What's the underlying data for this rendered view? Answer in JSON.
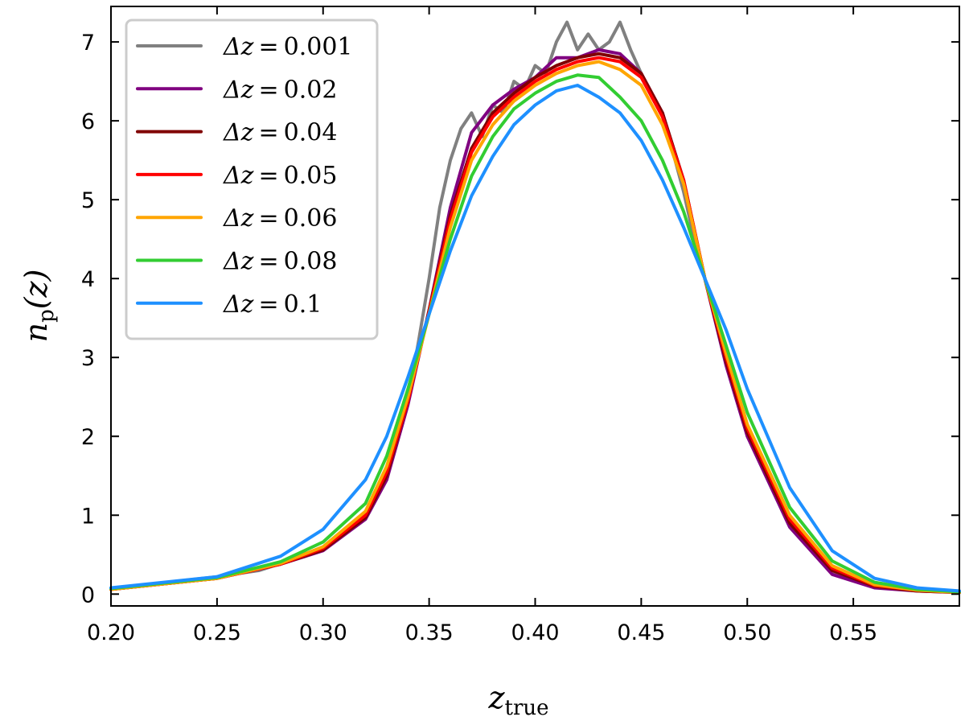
{
  "chart_data": {
    "type": "line",
    "title": "",
    "xlabel": "z",
    "xlabel_sub": "true",
    "ylabel": "n",
    "ylabel_sub": "p",
    "ylabel_arg": "(z)",
    "xlim": [
      0.2,
      0.6
    ],
    "ylim": [
      -0.15,
      7.45
    ],
    "xticks": [
      0.2,
      0.25,
      0.3,
      0.35,
      0.4,
      0.45,
      0.5,
      0.55
    ],
    "xtick_labels": [
      "0.20",
      "0.25",
      "0.30",
      "0.35",
      "0.40",
      "0.45",
      "0.50",
      "0.55"
    ],
    "yticks": [
      0,
      1,
      2,
      3,
      4,
      5,
      6,
      7
    ],
    "ytick_labels": [
      "0",
      "1",
      "2",
      "3",
      "4",
      "5",
      "6",
      "7"
    ],
    "grid": false,
    "legend_position": "top-left",
    "series": [
      {
        "name": "Δz = 0.001",
        "prefix": "Δz",
        "value": "0.001",
        "color": "#808080",
        "x": [
          0.2,
          0.25,
          0.27,
          0.3,
          0.32,
          0.33,
          0.34,
          0.345,
          0.35,
          0.355,
          0.36,
          0.365,
          0.37,
          0.375,
          0.38,
          0.385,
          0.39,
          0.395,
          0.4,
          0.405,
          0.41,
          0.415,
          0.42,
          0.425,
          0.43,
          0.435,
          0.44,
          0.445,
          0.45,
          0.455,
          0.46,
          0.465,
          0.47,
          0.475,
          0.48,
          0.49,
          0.5,
          0.52,
          0.54,
          0.56,
          0.58,
          0.6
        ],
        "y": [
          0.07,
          0.22,
          0.3,
          0.56,
          0.95,
          1.45,
          2.45,
          3.2,
          4.0,
          4.9,
          5.5,
          5.9,
          6.1,
          5.8,
          6.2,
          6.1,
          6.5,
          6.4,
          6.7,
          6.6,
          7.0,
          7.25,
          6.9,
          7.1,
          6.9,
          7.0,
          7.25,
          6.9,
          6.6,
          6.3,
          6.1,
          5.6,
          5.1,
          4.5,
          4.0,
          3.0,
          2.0,
          0.9,
          0.28,
          0.12,
          0.06,
          0.03
        ]
      },
      {
        "name": "Δz = 0.02",
        "prefix": "Δz",
        "value": "0.02",
        "color": "#800080",
        "x": [
          0.2,
          0.25,
          0.28,
          0.3,
          0.32,
          0.33,
          0.34,
          0.35,
          0.36,
          0.37,
          0.38,
          0.39,
          0.4,
          0.41,
          0.42,
          0.43,
          0.44,
          0.45,
          0.46,
          0.47,
          0.48,
          0.49,
          0.5,
          0.52,
          0.54,
          0.56,
          0.58,
          0.6
        ],
        "y": [
          0.06,
          0.2,
          0.38,
          0.55,
          0.95,
          1.45,
          2.4,
          3.6,
          4.9,
          5.85,
          6.2,
          6.4,
          6.55,
          6.8,
          6.8,
          6.9,
          6.85,
          6.6,
          6.1,
          5.2,
          4.0,
          2.9,
          2.0,
          0.85,
          0.25,
          0.08,
          0.04,
          0.02
        ]
      },
      {
        "name": "Δz = 0.04",
        "prefix": "Δz",
        "value": "0.04",
        "color": "#800000",
        "x": [
          0.2,
          0.25,
          0.28,
          0.3,
          0.32,
          0.33,
          0.34,
          0.35,
          0.36,
          0.37,
          0.38,
          0.39,
          0.4,
          0.41,
          0.42,
          0.43,
          0.44,
          0.45,
          0.46,
          0.47,
          0.48,
          0.49,
          0.5,
          0.52,
          0.54,
          0.56,
          0.58,
          0.6
        ],
        "y": [
          0.06,
          0.2,
          0.38,
          0.56,
          0.97,
          1.5,
          2.45,
          3.6,
          4.8,
          5.65,
          6.1,
          6.35,
          6.55,
          6.7,
          6.8,
          6.85,
          6.8,
          6.6,
          6.1,
          5.25,
          4.0,
          2.95,
          2.05,
          0.9,
          0.3,
          0.1,
          0.04,
          0.02
        ]
      },
      {
        "name": "Δz = 0.05",
        "prefix": "Δz",
        "value": "0.05",
        "color": "#ff0000",
        "x": [
          0.2,
          0.25,
          0.28,
          0.3,
          0.32,
          0.33,
          0.34,
          0.35,
          0.36,
          0.37,
          0.38,
          0.39,
          0.4,
          0.41,
          0.42,
          0.43,
          0.44,
          0.45,
          0.46,
          0.47,
          0.48,
          0.49,
          0.5,
          0.52,
          0.54,
          0.56,
          0.58,
          0.6
        ],
        "y": [
          0.06,
          0.2,
          0.38,
          0.58,
          1.0,
          1.55,
          2.45,
          3.58,
          4.75,
          5.6,
          6.05,
          6.3,
          6.5,
          6.65,
          6.75,
          6.8,
          6.75,
          6.55,
          6.05,
          5.25,
          4.0,
          3.0,
          2.1,
          0.95,
          0.33,
          0.11,
          0.05,
          0.02
        ]
      },
      {
        "name": "Δz = 0.06",
        "prefix": "Δz",
        "value": "0.06",
        "color": "#ffa500",
        "x": [
          0.2,
          0.25,
          0.28,
          0.3,
          0.32,
          0.33,
          0.34,
          0.35,
          0.36,
          0.37,
          0.38,
          0.39,
          0.4,
          0.41,
          0.42,
          0.43,
          0.44,
          0.45,
          0.46,
          0.47,
          0.48,
          0.49,
          0.5,
          0.52,
          0.54,
          0.56,
          0.58,
          0.6
        ],
        "y": [
          0.06,
          0.2,
          0.39,
          0.6,
          1.05,
          1.62,
          2.5,
          3.55,
          4.65,
          5.5,
          5.95,
          6.25,
          6.45,
          6.6,
          6.7,
          6.75,
          6.65,
          6.45,
          5.95,
          5.2,
          4.0,
          3.05,
          2.15,
          1.0,
          0.36,
          0.12,
          0.05,
          0.02
        ]
      },
      {
        "name": "Δz = 0.08",
        "prefix": "Δz",
        "value": "0.08",
        "color": "#32cd32",
        "x": [
          0.2,
          0.25,
          0.28,
          0.3,
          0.32,
          0.33,
          0.34,
          0.35,
          0.36,
          0.37,
          0.38,
          0.39,
          0.4,
          0.41,
          0.42,
          0.43,
          0.44,
          0.45,
          0.46,
          0.47,
          0.48,
          0.49,
          0.5,
          0.52,
          0.54,
          0.56,
          0.58,
          0.6
        ],
        "y": [
          0.07,
          0.21,
          0.41,
          0.66,
          1.15,
          1.75,
          2.6,
          3.55,
          4.5,
          5.3,
          5.8,
          6.15,
          6.35,
          6.5,
          6.58,
          6.55,
          6.3,
          6.0,
          5.5,
          4.85,
          4.0,
          3.15,
          2.3,
          1.1,
          0.42,
          0.15,
          0.06,
          0.03
        ]
      },
      {
        "name": "Δz = 0.1",
        "prefix": "Δz",
        "value": "0.1",
        "color": "#1e90ff",
        "x": [
          0.2,
          0.25,
          0.28,
          0.3,
          0.32,
          0.33,
          0.34,
          0.35,
          0.36,
          0.37,
          0.38,
          0.39,
          0.4,
          0.41,
          0.42,
          0.43,
          0.44,
          0.45,
          0.46,
          0.47,
          0.48,
          0.49,
          0.5,
          0.52,
          0.54,
          0.56,
          0.58,
          0.6
        ],
        "y": [
          0.08,
          0.22,
          0.48,
          0.82,
          1.45,
          2.0,
          2.75,
          3.55,
          4.35,
          5.05,
          5.55,
          5.95,
          6.2,
          6.38,
          6.45,
          6.3,
          6.1,
          5.75,
          5.25,
          4.65,
          4.0,
          3.35,
          2.6,
          1.35,
          0.55,
          0.2,
          0.08,
          0.04
        ]
      }
    ]
  }
}
